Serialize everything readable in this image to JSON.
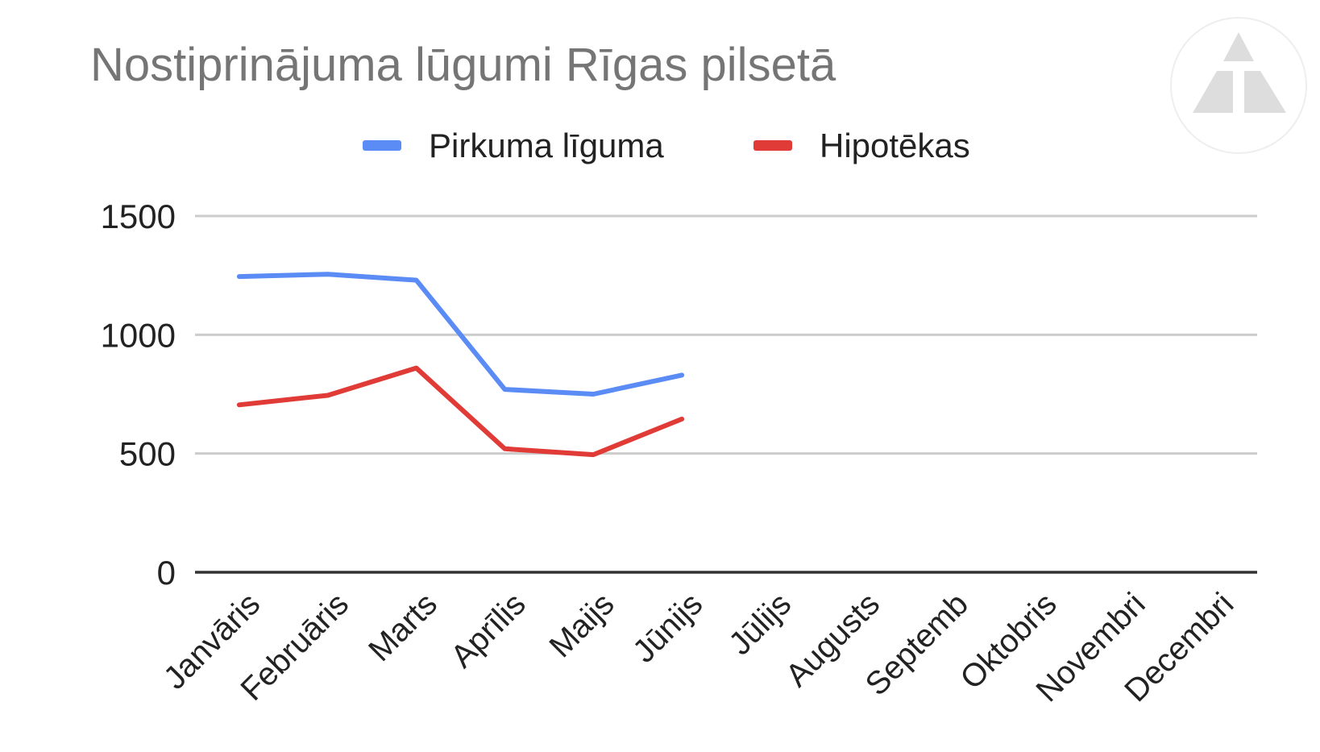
{
  "chart_data": {
    "type": "line",
    "title": "Nostiprinājuma lūgumi Rīgas pilsetā",
    "categories": [
      "Janvāris",
      "Februāris",
      "Marts",
      "Aprīlis",
      "Maijs",
      "Jūnijs",
      "Jūlijs",
      "Augusts",
      "Septemb",
      "Oktobris",
      "Novembri",
      "Decembri"
    ],
    "series": [
      {
        "name": "Pirkuma līguma",
        "color": "#5b8cf5",
        "values": [
          1245,
          1255,
          1230,
          770,
          750,
          830,
          null,
          null,
          null,
          null,
          null,
          null
        ]
      },
      {
        "name": "Hipotēkas",
        "color": "#e03b36",
        "values": [
          705,
          745,
          860,
          520,
          495,
          645,
          null,
          null,
          null,
          null,
          null,
          null
        ]
      }
    ],
    "ylim": [
      0,
      1500
    ],
    "yticks": [
      0,
      500,
      1000,
      1500
    ],
    "ytick_labels": [
      "0",
      "500",
      "1000",
      "1500"
    ],
    "xlabel": "",
    "ylabel": "",
    "grid": true,
    "legend_position": "top"
  },
  "watermark": {
    "icon": "triangle-logo-icon"
  }
}
